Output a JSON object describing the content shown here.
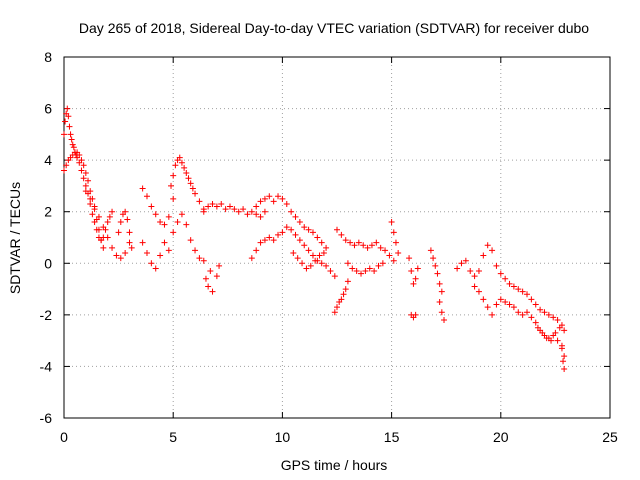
{
  "chart_data": {
    "type": "scatter",
    "title": "Day 265 of 2018, Sidereal Day-to-day VTEC variation (SDTVAR) for receiver dubo",
    "xlabel": "GPS time / hours",
    "ylabel": "SDTVAR / TECUs",
    "xlim": [
      0,
      25
    ],
    "ylim": [
      -6,
      8
    ],
    "xticks": [
      0,
      5,
      10,
      15,
      20,
      25
    ],
    "yticks": [
      -6,
      -4,
      -2,
      0,
      2,
      4,
      6,
      8
    ],
    "grid": true,
    "marker": "+",
    "color": "#ff0000",
    "series": [
      {
        "name": "SDTVAR",
        "x": [
          0.0,
          0.05,
          0.1,
          0.15,
          0.2,
          0.25,
          0.3,
          0.35,
          0.4,
          0.45,
          0.5,
          0.55,
          0.6,
          0.7,
          0.8,
          0.9,
          1.0,
          1.1,
          1.2,
          1.3,
          1.4,
          1.5,
          1.6,
          1.7,
          1.8,
          1.9,
          2.0,
          2.1,
          2.2,
          0.0,
          0.1,
          0.2,
          0.3,
          0.4,
          0.5,
          0.6,
          0.7,
          0.8,
          0.9,
          1.0,
          1.1,
          1.2,
          1.3,
          1.4,
          1.5,
          1.6,
          1.7,
          1.8,
          1.0,
          1.2,
          1.4,
          1.6,
          1.8,
          2.0,
          2.2,
          2.4,
          2.6,
          2.8,
          3.0,
          2.5,
          2.6,
          2.7,
          2.8,
          2.9,
          3.0,
          3.1,
          3.6,
          3.8,
          4.0,
          4.2,
          4.4,
          4.6,
          4.8,
          5.0,
          3.6,
          3.8,
          4.0,
          4.2,
          4.4,
          4.6,
          4.8,
          4.9,
          5.0,
          5.1,
          5.2,
          5.3,
          5.4,
          5.5,
          5.6,
          5.7,
          5.8,
          5.9,
          6.0,
          6.2,
          6.4,
          5.0,
          5.2,
          5.4,
          5.6,
          5.8,
          6.0,
          6.2,
          6.4,
          6.4,
          6.6,
          6.8,
          7.0,
          7.2,
          7.4,
          7.6,
          7.8,
          8.0,
          8.2,
          8.4,
          8.6,
          8.8,
          9.0,
          9.2,
          6.5,
          6.6,
          6.7,
          6.8,
          7.0,
          7.1,
          8.6,
          8.8,
          9.0,
          9.2,
          9.4,
          9.6,
          9.8,
          10.0,
          10.2,
          10.4,
          10.6,
          10.8,
          11.0,
          11.2,
          11.4,
          11.6,
          11.8,
          12.0,
          12.2,
          12.4,
          8.8,
          9.0,
          9.2,
          9.4,
          9.6,
          9.8,
          10.0,
          10.2,
          10.4,
          10.6,
          10.8,
          11.0,
          11.2,
          11.4,
          11.6,
          11.8,
          12.0,
          10.5,
          10.7,
          10.9,
          11.1,
          11.3,
          11.5,
          11.7,
          11.9,
          12.4,
          12.5,
          12.6,
          12.7,
          12.8,
          12.9,
          13.0,
          12.5,
          12.7,
          12.9,
          13.1,
          13.3,
          13.5,
          13.7,
          13.9,
          14.1,
          14.3,
          14.5,
          14.7,
          14.9,
          15.1,
          13.0,
          13.2,
          13.4,
          13.6,
          13.8,
          14.0,
          14.2,
          14.4,
          14.6,
          15.0,
          15.1,
          15.2,
          15.3,
          15.8,
          15.9,
          16.0,
          16.1,
          16.2,
          15.9,
          16.0,
          16.1,
          16.8,
          16.9,
          17.0,
          17.1,
          17.2,
          17.3,
          17.2,
          17.3,
          17.4,
          18.0,
          18.2,
          18.4,
          18.6,
          18.8,
          19.0,
          19.2,
          19.4,
          19.6,
          19.8,
          20.0,
          20.2,
          20.4,
          20.6,
          20.8,
          21.0,
          21.2,
          21.4,
          21.6,
          21.8,
          22.0,
          22.2,
          22.4,
          22.6,
          22.8,
          22.9,
          18.8,
          19.0,
          19.2,
          19.4,
          19.6,
          19.8,
          20.0,
          20.2,
          20.4,
          20.6,
          20.8,
          21.0,
          21.2,
          21.4,
          21.6,
          21.8,
          22.0,
          22.2,
          22.4,
          22.6,
          22.8,
          22.9,
          21.7,
          21.9,
          22.1,
          22.3,
          22.5,
          22.7,
          22.8,
          22.85,
          22.9
        ],
        "y": [
          5.0,
          5.5,
          5.8,
          6.0,
          5.7,
          5.3,
          5.0,
          4.8,
          4.6,
          4.5,
          4.3,
          4.2,
          4.1,
          3.9,
          3.6,
          3.3,
          3.0,
          2.7,
          2.3,
          1.9,
          1.6,
          1.3,
          1.0,
          0.9,
          1.0,
          1.3,
          1.6,
          1.8,
          2.0,
          3.6,
          3.8,
          4.0,
          4.1,
          4.2,
          4.3,
          4.3,
          4.2,
          4.0,
          3.8,
          3.5,
          3.2,
          2.8,
          2.5,
          2.1,
          1.7,
          1.3,
          0.9,
          0.6,
          2.8,
          2.5,
          2.2,
          1.8,
          1.4,
          1.0,
          0.6,
          0.3,
          0.2,
          0.4,
          0.8,
          1.2,
          1.6,
          1.9,
          2.0,
          1.7,
          1.2,
          0.6,
          2.9,
          2.6,
          2.2,
          1.9,
          1.6,
          1.5,
          1.8,
          2.5,
          0.8,
          0.4,
          0.0,
          -0.2,
          0.3,
          0.8,
          0.5,
          3.0,
          3.4,
          3.8,
          4.0,
          4.1,
          3.9,
          3.7,
          3.5,
          3.3,
          3.1,
          2.9,
          2.7,
          2.4,
          2.1,
          1.2,
          1.6,
          1.9,
          1.5,
          0.9,
          0.5,
          0.2,
          0.1,
          2.0,
          2.2,
          2.3,
          2.2,
          2.3,
          2.1,
          2.2,
          2.1,
          2.0,
          2.1,
          1.9,
          2.0,
          1.9,
          1.8,
          2.0,
          -0.6,
          -0.9,
          -0.3,
          -1.1,
          -0.5,
          -0.1,
          0.2,
          0.5,
          0.8,
          0.9,
          1.0,
          0.9,
          1.1,
          1.2,
          1.4,
          1.3,
          1.1,
          0.9,
          0.7,
          0.5,
          0.3,
          0.1,
          0.0,
          -0.1,
          -0.3,
          -0.5,
          2.2,
          2.4,
          2.5,
          2.6,
          2.4,
          2.6,
          2.5,
          2.3,
          2.0,
          1.8,
          1.6,
          1.4,
          1.3,
          1.2,
          1.0,
          0.8,
          0.6,
          0.4,
          0.2,
          0.0,
          -0.2,
          -0.1,
          0.1,
          0.3,
          0.4,
          -1.9,
          -1.7,
          -1.5,
          -1.4,
          -1.2,
          -1.0,
          -0.7,
          1.3,
          1.1,
          0.9,
          0.8,
          0.7,
          0.8,
          0.7,
          0.6,
          0.7,
          0.8,
          0.6,
          0.5,
          0.3,
          0.1,
          0.0,
          -0.2,
          -0.3,
          -0.4,
          -0.3,
          -0.2,
          -0.3,
          -0.1,
          0.0,
          1.6,
          1.2,
          0.8,
          0.4,
          0.2,
          -0.3,
          -0.8,
          -0.6,
          -0.2,
          -2.0,
          -2.1,
          -2.0,
          0.5,
          0.2,
          -0.1,
          -0.4,
          -0.8,
          -1.1,
          -1.5,
          -1.9,
          -2.2,
          -0.2,
          0.0,
          0.1,
          -0.3,
          -0.5,
          -0.3,
          0.3,
          0.7,
          0.5,
          -0.1,
          -0.4,
          -0.6,
          -0.8,
          -0.9,
          -1.0,
          -1.1,
          -1.2,
          -1.4,
          -1.6,
          -1.8,
          -1.9,
          -2.0,
          -2.1,
          -2.2,
          -2.4,
          -2.6,
          -0.9,
          -1.1,
          -1.4,
          -1.7,
          -2.0,
          -1.6,
          -1.4,
          -1.5,
          -1.6,
          -1.7,
          -1.9,
          -2.0,
          -1.9,
          -2.1,
          -2.3,
          -2.6,
          -2.8,
          -2.9,
          -2.8,
          -3.0,
          -3.3,
          -3.6,
          -2.5,
          -2.7,
          -2.9,
          -3.0,
          -2.7,
          -2.5,
          -3.2,
          -3.8,
          -4.1
        ]
      }
    ]
  }
}
